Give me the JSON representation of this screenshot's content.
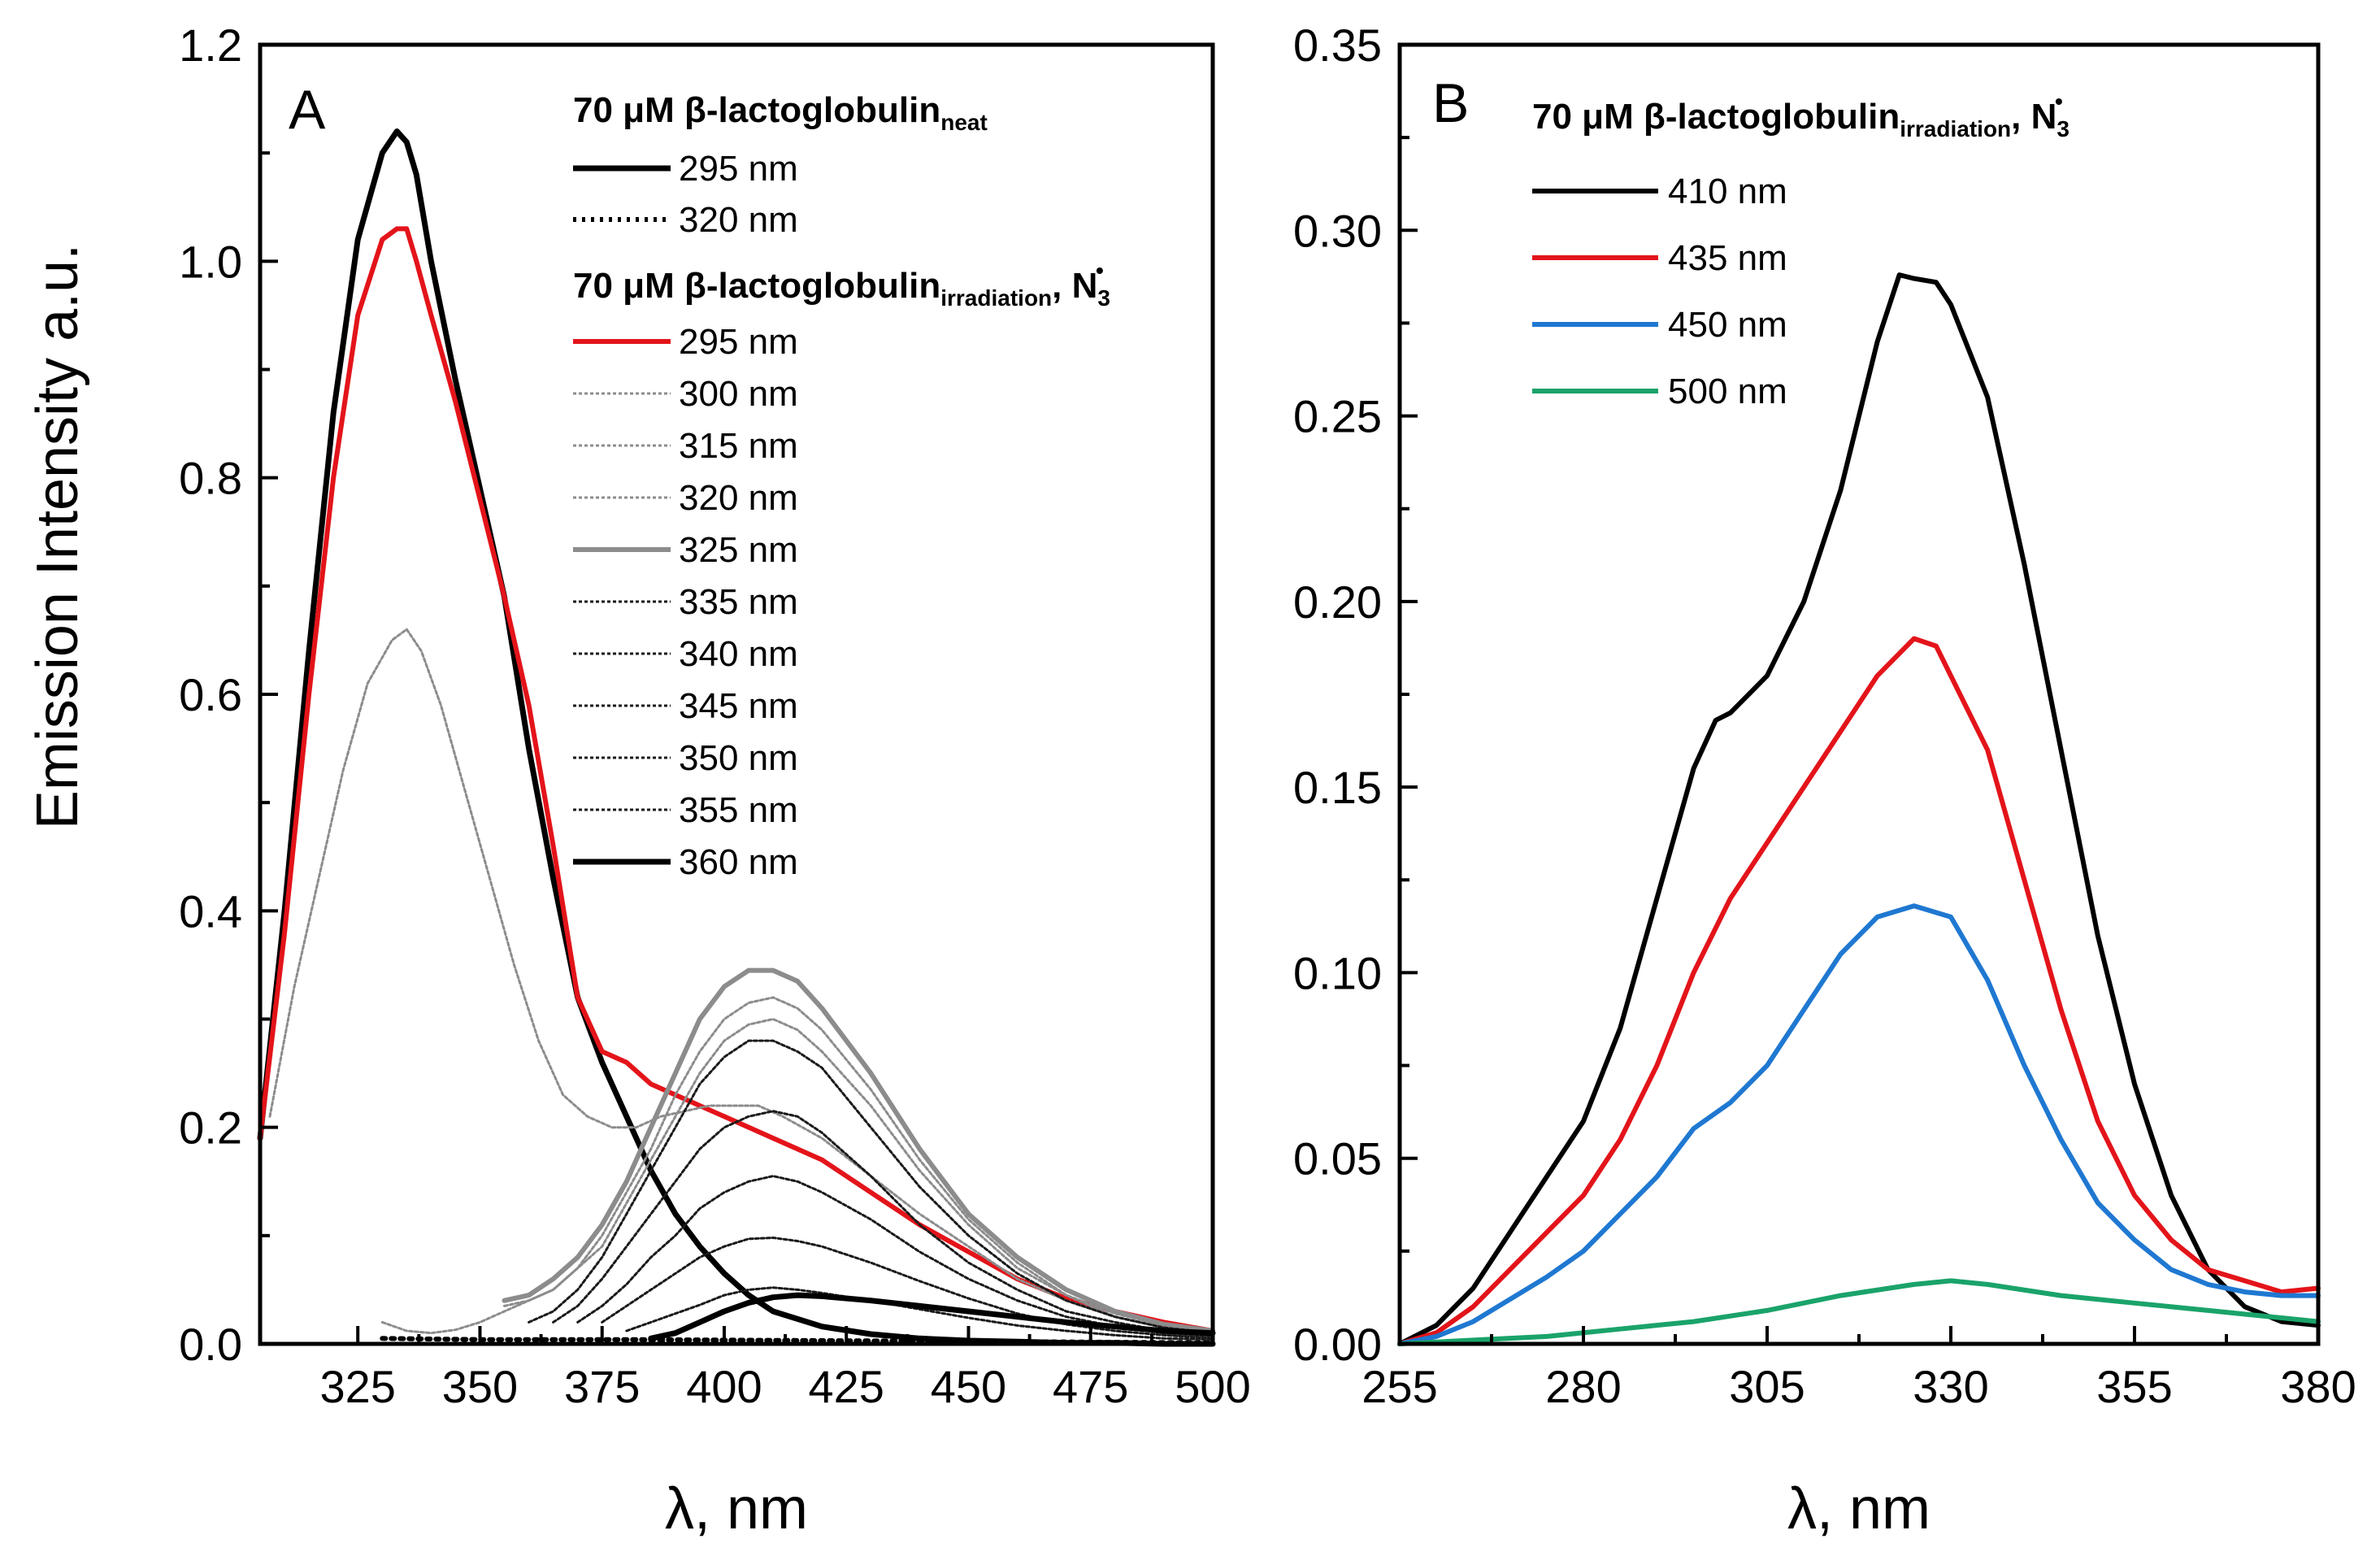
{
  "figure": {
    "y_axis_title": "Emission Intensity a.u."
  },
  "chart_data": [
    {
      "type": "line",
      "panel_label": "A",
      "xlabel": "λ, nm",
      "ylabel": "Emission Intensity a.u.",
      "xlim": [
        305,
        500
      ],
      "ylim": [
        0,
        1.2
      ],
      "xticks": [
        "325",
        "350",
        "375",
        "400",
        "425",
        "450",
        "475",
        "500"
      ],
      "yticks": [
        "0.0",
        "0.2",
        "0.4",
        "0.6",
        "0.8",
        "1.0",
        "1.2"
      ],
      "legend": {
        "group1_title": "70 μM β-lactoglobulin",
        "group1_subscript": "neat",
        "group2_title": "70 μM β-lactoglobulin",
        "group2_subscript": "irradiation",
        "group2_suffix": ", N",
        "group2_suffix_sub": "3",
        "group2_suffix_sup": "•"
      },
      "series": [
        {
          "name": "295 nm",
          "group": "neat",
          "color": "#000000",
          "style": "solid-thick",
          "x": [
            305,
            310,
            315,
            320,
            325,
            330,
            333,
            335,
            337,
            340,
            345,
            350,
            355,
            360,
            365,
            370,
            375,
            380,
            385,
            390,
            395,
            400,
            405,
            410,
            420,
            430,
            440,
            450,
            460,
            470,
            480,
            490,
            500
          ],
          "y": [
            0.19,
            0.4,
            0.64,
            0.86,
            1.02,
            1.1,
            1.12,
            1.11,
            1.08,
            1.0,
            0.89,
            0.79,
            0.69,
            0.55,
            0.43,
            0.32,
            0.26,
            0.21,
            0.16,
            0.12,
            0.09,
            0.065,
            0.045,
            0.03,
            0.016,
            0.009,
            0.005,
            0.003,
            0.002,
            0.001,
            0.001,
            0.0,
            0.0
          ]
        },
        {
          "name": "320 nm",
          "group": "neat",
          "color": "#000000",
          "style": "dotted",
          "x": [
            330,
            350,
            380,
            420,
            460,
            500
          ],
          "y": [
            0.005,
            0.004,
            0.004,
            0.003,
            0.002,
            0.001
          ]
        },
        {
          "name": "295 nm",
          "group": "irradiation",
          "color": "#e3141a",
          "style": "solid",
          "x": [
            305,
            310,
            315,
            320,
            325,
            330,
            333,
            335,
            337,
            340,
            345,
            350,
            355,
            360,
            365,
            370,
            375,
            380,
            385,
            390,
            400,
            410,
            420,
            430,
            440,
            450,
            460,
            470,
            480,
            490,
            500
          ],
          "y": [
            0.19,
            0.38,
            0.6,
            0.8,
            0.95,
            1.02,
            1.03,
            1.03,
            1.0,
            0.95,
            0.87,
            0.78,
            0.69,
            0.59,
            0.46,
            0.32,
            0.27,
            0.26,
            0.24,
            0.23,
            0.21,
            0.19,
            0.17,
            0.14,
            0.11,
            0.085,
            0.06,
            0.042,
            0.03,
            0.02,
            0.012
          ]
        },
        {
          "name": "300 nm",
          "group": "irradiation",
          "color": "#8c8c8c",
          "style": "fine-dotted",
          "x": [
            307,
            312,
            317,
            322,
            327,
            332,
            335,
            338,
            342,
            347,
            352,
            357,
            362,
            367,
            372,
            377,
            382,
            387,
            392,
            397,
            402,
            407,
            412,
            420,
            430,
            440,
            450,
            460,
            470,
            480,
            490,
            500
          ],
          "y": [
            0.21,
            0.33,
            0.43,
            0.53,
            0.61,
            0.65,
            0.66,
            0.64,
            0.59,
            0.51,
            0.43,
            0.35,
            0.28,
            0.23,
            0.21,
            0.2,
            0.2,
            0.21,
            0.215,
            0.22,
            0.22,
            0.22,
            0.21,
            0.19,
            0.155,
            0.12,
            0.09,
            0.06,
            0.04,
            0.025,
            0.015,
            0.01
          ]
        },
        {
          "name": "315 nm",
          "group": "irradiation",
          "color": "#8c8c8c",
          "style": "fine-dotted",
          "x": [
            330,
            335,
            340,
            345,
            350,
            355,
            360,
            365,
            370,
            375,
            380,
            385,
            390,
            395,
            400,
            405,
            410,
            415,
            420,
            430,
            440,
            450,
            460,
            470,
            480,
            490,
            500
          ],
          "y": [
            0.02,
            0.012,
            0.01,
            0.013,
            0.02,
            0.03,
            0.04,
            0.05,
            0.07,
            0.09,
            0.13,
            0.17,
            0.21,
            0.25,
            0.28,
            0.295,
            0.3,
            0.29,
            0.27,
            0.22,
            0.16,
            0.11,
            0.07,
            0.045,
            0.025,
            0.015,
            0.01
          ]
        },
        {
          "name": "320 nm",
          "group": "irradiation",
          "color": "#8c8c8c",
          "style": "fine-dotted",
          "x": [
            355,
            360,
            365,
            370,
            375,
            380,
            385,
            390,
            395,
            400,
            405,
            410,
            415,
            420,
            430,
            440,
            450,
            460,
            470,
            480,
            490,
            500
          ],
          "y": [
            0.035,
            0.04,
            0.05,
            0.07,
            0.1,
            0.14,
            0.18,
            0.23,
            0.27,
            0.3,
            0.315,
            0.32,
            0.31,
            0.29,
            0.235,
            0.17,
            0.115,
            0.075,
            0.045,
            0.028,
            0.017,
            0.01
          ]
        },
        {
          "name": "325 nm",
          "group": "irradiation",
          "color": "#8c8c8c",
          "style": "solid",
          "x": [
            355,
            360,
            365,
            370,
            375,
            380,
            385,
            390,
            395,
            400,
            405,
            410,
            415,
            420,
            430,
            440,
            450,
            460,
            470,
            480,
            490,
            500
          ],
          "y": [
            0.04,
            0.045,
            0.06,
            0.08,
            0.11,
            0.15,
            0.2,
            0.25,
            0.3,
            0.33,
            0.345,
            0.345,
            0.335,
            0.31,
            0.25,
            0.18,
            0.12,
            0.08,
            0.05,
            0.03,
            0.018,
            0.012
          ]
        },
        {
          "name": "335 nm",
          "group": "irradiation",
          "color": "#1a1a1a",
          "style": "fine-dotted",
          "x": [
            360,
            365,
            370,
            375,
            380,
            385,
            390,
            395,
            400,
            405,
            410,
            415,
            420,
            430,
            440,
            450,
            460,
            470,
            480,
            490,
            500
          ],
          "y": [
            0.02,
            0.03,
            0.05,
            0.08,
            0.12,
            0.16,
            0.2,
            0.24,
            0.265,
            0.28,
            0.28,
            0.27,
            0.255,
            0.2,
            0.145,
            0.1,
            0.065,
            0.04,
            0.025,
            0.015,
            0.01
          ]
        },
        {
          "name": "340 nm",
          "group": "irradiation",
          "color": "#1a1a1a",
          "style": "fine-dotted",
          "x": [
            365,
            370,
            375,
            380,
            385,
            390,
            395,
            400,
            405,
            410,
            415,
            420,
            430,
            440,
            450,
            460,
            470,
            480,
            490,
            500
          ],
          "y": [
            0.02,
            0.035,
            0.06,
            0.09,
            0.12,
            0.15,
            0.18,
            0.2,
            0.21,
            0.215,
            0.21,
            0.195,
            0.155,
            0.11,
            0.075,
            0.05,
            0.03,
            0.02,
            0.012,
            0.008
          ]
        },
        {
          "name": "345 nm",
          "group": "irradiation",
          "color": "#1a1a1a",
          "style": "fine-dotted",
          "x": [
            370,
            375,
            380,
            385,
            390,
            395,
            400,
            405,
            410,
            415,
            420,
            430,
            440,
            450,
            460,
            470,
            480,
            490,
            500
          ],
          "y": [
            0.02,
            0.035,
            0.055,
            0.08,
            0.1,
            0.125,
            0.14,
            0.15,
            0.155,
            0.15,
            0.14,
            0.115,
            0.085,
            0.06,
            0.04,
            0.025,
            0.016,
            0.01,
            0.007
          ]
        },
        {
          "name": "350 nm",
          "group": "irradiation",
          "color": "#1a1a1a",
          "style": "fine-dotted",
          "x": [
            375,
            380,
            385,
            390,
            395,
            400,
            405,
            410,
            415,
            420,
            430,
            440,
            450,
            460,
            470,
            480,
            490,
            500
          ],
          "y": [
            0.02,
            0.035,
            0.05,
            0.065,
            0.08,
            0.09,
            0.097,
            0.098,
            0.095,
            0.09,
            0.075,
            0.058,
            0.042,
            0.028,
            0.018,
            0.012,
            0.008,
            0.005
          ]
        },
        {
          "name": "355 nm",
          "group": "irradiation",
          "color": "#1a1a1a",
          "style": "fine-dotted",
          "x": [
            380,
            385,
            390,
            395,
            400,
            405,
            410,
            415,
            420,
            430,
            440,
            450,
            460,
            470,
            480,
            490,
            500
          ],
          "y": [
            0.012,
            0.02,
            0.028,
            0.036,
            0.045,
            0.05,
            0.052,
            0.05,
            0.047,
            0.04,
            0.032,
            0.024,
            0.017,
            0.012,
            0.008,
            0.005,
            0.004
          ]
        },
        {
          "name": "360 nm",
          "group": "irradiation",
          "color": "#000000",
          "style": "solid-thick",
          "x": [
            385,
            390,
            395,
            400,
            405,
            410,
            415,
            420,
            430,
            440,
            450,
            460,
            470,
            480,
            490,
            500
          ],
          "y": [
            0.005,
            0.01,
            0.02,
            0.03,
            0.038,
            0.043,
            0.045,
            0.044,
            0.04,
            0.035,
            0.03,
            0.025,
            0.02,
            0.016,
            0.012,
            0.01
          ]
        }
      ]
    },
    {
      "type": "line",
      "panel_label": "B",
      "xlabel": "λ, nm",
      "xlim": [
        255,
        380
      ],
      "ylim": [
        0,
        0.35
      ],
      "xticks": [
        "255",
        "280",
        "305",
        "330",
        "355",
        "380"
      ],
      "yticks": [
        "0.00",
        "0.05",
        "0.10",
        "0.15",
        "0.20",
        "0.25",
        "0.30",
        "0.35"
      ],
      "legend": {
        "title": "70 μM β-lactoglobulin",
        "subscript": "irradiation",
        "suffix": ", N",
        "suffix_sub": "3",
        "suffix_sup": "•"
      },
      "series": [
        {
          "name": "410 nm",
          "color": "#000000",
          "x": [
            255,
            260,
            265,
            270,
            275,
            280,
            285,
            290,
            295,
            298,
            300,
            305,
            310,
            315,
            320,
            323,
            325,
            328,
            330,
            335,
            340,
            345,
            350,
            355,
            360,
            365,
            370,
            375,
            380
          ],
          "y": [
            0.0,
            0.005,
            0.015,
            0.03,
            0.045,
            0.06,
            0.085,
            0.12,
            0.155,
            0.168,
            0.17,
            0.18,
            0.2,
            0.23,
            0.27,
            0.288,
            0.287,
            0.286,
            0.28,
            0.255,
            0.21,
            0.16,
            0.11,
            0.07,
            0.04,
            0.02,
            0.01,
            0.006,
            0.005
          ]
        },
        {
          "name": "435 nm",
          "color": "#e3141a",
          "x": [
            255,
            260,
            265,
            270,
            275,
            280,
            285,
            290,
            295,
            300,
            305,
            310,
            315,
            320,
            325,
            328,
            330,
            335,
            340,
            345,
            350,
            355,
            360,
            365,
            370,
            375,
            380
          ],
          "y": [
            0.0,
            0.003,
            0.01,
            0.02,
            0.03,
            0.04,
            0.055,
            0.075,
            0.1,
            0.12,
            0.135,
            0.15,
            0.165,
            0.18,
            0.19,
            0.188,
            0.18,
            0.16,
            0.125,
            0.09,
            0.06,
            0.04,
            0.028,
            0.02,
            0.017,
            0.014,
            0.015
          ]
        },
        {
          "name": "450 nm",
          "color": "#1f78d1",
          "x": [
            255,
            260,
            265,
            270,
            275,
            280,
            285,
            290,
            295,
            300,
            305,
            310,
            315,
            320,
            325,
            330,
            335,
            340,
            345,
            350,
            355,
            360,
            365,
            370,
            375,
            380
          ],
          "y": [
            0.0,
            0.002,
            0.006,
            0.012,
            0.018,
            0.025,
            0.035,
            0.045,
            0.058,
            0.065,
            0.075,
            0.09,
            0.105,
            0.115,
            0.118,
            0.115,
            0.098,
            0.075,
            0.055,
            0.038,
            0.028,
            0.02,
            0.016,
            0.014,
            0.013,
            0.013
          ]
        },
        {
          "name": "500 nm",
          "color": "#1aa36a",
          "x": [
            255,
            265,
            275,
            285,
            295,
            305,
            315,
            325,
            330,
            335,
            345,
            355,
            365,
            375,
            380
          ],
          "y": [
            0.0,
            0.001,
            0.002,
            0.004,
            0.006,
            0.009,
            0.013,
            0.016,
            0.017,
            0.016,
            0.013,
            0.011,
            0.009,
            0.007,
            0.006
          ]
        }
      ]
    }
  ]
}
